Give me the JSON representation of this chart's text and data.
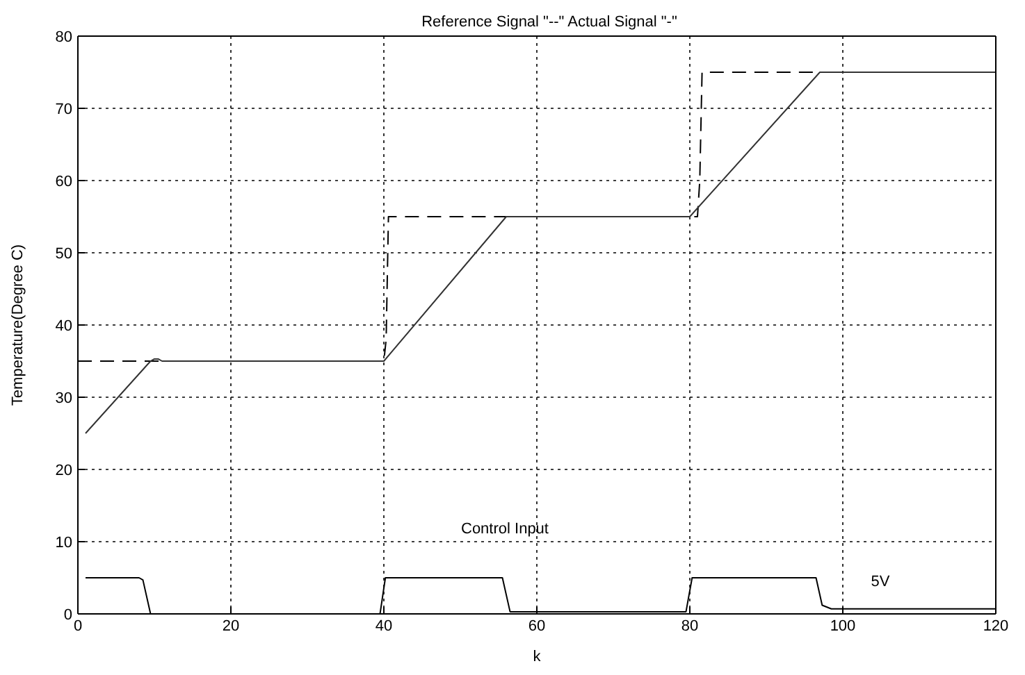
{
  "chart_data": {
    "type": "line",
    "title": "Reference Signal \"--\" Actual Signal \"-\"",
    "xlabel": "k",
    "ylabel": "Temperature(Degree C)",
    "xlim": [
      0,
      120
    ],
    "xticks": [
      0,
      20,
      40,
      60,
      80,
      100,
      120
    ],
    "ylim": [
      0,
      80
    ],
    "yticks": [
      0,
      10,
      20,
      30,
      40,
      50,
      60,
      70,
      80
    ],
    "grid": true,
    "legend": false,
    "marker": "none",
    "series": [
      {
        "color": "#000000",
        "line_style": "dashed",
        "x": [
          0,
          40,
          40.3,
          40.6,
          81,
          81.3,
          81.6,
          120
        ],
        "values": [
          35,
          35,
          38,
          55,
          55,
          60,
          75,
          75
        ]
      },
      {
        "color": "#333333",
        "line_style": "solid",
        "x": [
          1,
          9.5,
          10,
          10.5,
          11,
          40,
          56,
          80,
          97,
          120
        ],
        "values": [
          25,
          35,
          35.3,
          35.3,
          35,
          35,
          55,
          55,
          75,
          75
        ]
      },
      {
        "color": "#000000",
        "line_style": "solid",
        "x": [
          1,
          8,
          8.5,
          9.5,
          39.5,
          40.2,
          55.5,
          56.5,
          79.5,
          80.3,
          96.5,
          97.3,
          98.5,
          120
        ],
        "values": [
          5,
          5,
          4.7,
          0,
          0,
          5,
          5,
          0.3,
          0.3,
          5,
          5,
          1.2,
          0.7,
          0.7
        ]
      }
    ],
    "annotations": [
      "Control Input",
      "5V"
    ]
  }
}
